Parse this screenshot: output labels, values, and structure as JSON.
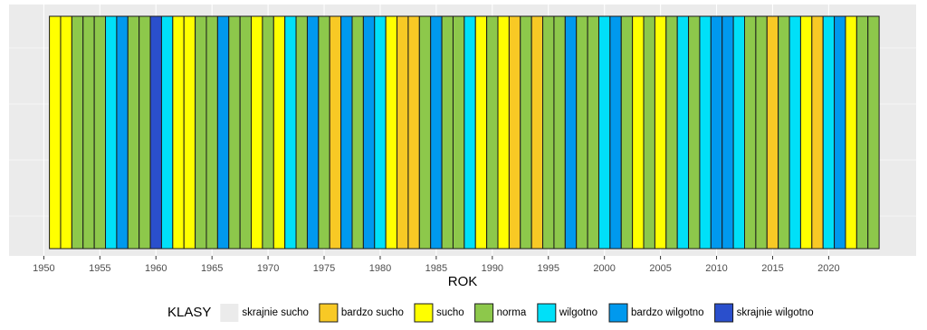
{
  "chart_data": {
    "type": "bar",
    "x_label": "ROK",
    "x": [
      1951,
      1952,
      1953,
      1954,
      1955,
      1956,
      1957,
      1958,
      1959,
      1960,
      1961,
      1962,
      1963,
      1964,
      1965,
      1966,
      1967,
      1968,
      1969,
      1970,
      1971,
      1972,
      1973,
      1974,
      1975,
      1976,
      1977,
      1978,
      1979,
      1980,
      1981,
      1982,
      1983,
      1984,
      1985,
      1986,
      1987,
      1988,
      1989,
      1990,
      1991,
      1992,
      1993,
      1994,
      1995,
      1996,
      1997,
      1998,
      1999,
      2000,
      2001,
      2002,
      2003,
      2004,
      2005,
      2006,
      2007,
      2008,
      2009,
      2010,
      2011,
      2012,
      2013,
      2014,
      2015,
      2016,
      2017,
      2018,
      2019,
      2020,
      2021,
      2022,
      2023,
      2024
    ],
    "classes": [
      "sucho",
      "sucho",
      "norma",
      "norma",
      "norma",
      "wilgotno",
      "bardzo wilgotno",
      "norma",
      "norma",
      "skrajnie wilgotno",
      "wilgotno",
      "sucho",
      "sucho",
      "norma",
      "norma",
      "bardzo wilgotno",
      "norma",
      "norma",
      "sucho",
      "norma",
      "sucho",
      "wilgotno",
      "norma",
      "bardzo wilgotno",
      "norma",
      "bardzo sucho",
      "bardzo wilgotno",
      "norma",
      "bardzo wilgotno",
      "wilgotno",
      "sucho",
      "bardzo sucho",
      "bardzo sucho",
      "norma",
      "bardzo wilgotno",
      "norma",
      "norma",
      "wilgotno",
      "sucho",
      "norma",
      "sucho",
      "bardzo sucho",
      "norma",
      "bardzo sucho",
      "norma",
      "norma",
      "bardzo wilgotno",
      "norma",
      "norma",
      "wilgotno",
      "bardzo wilgotno",
      "norma",
      "sucho",
      "norma",
      "sucho",
      "norma",
      "wilgotno",
      "norma",
      "wilgotno",
      "bardzo wilgotno",
      "bardzo wilgotno",
      "wilgotno",
      "norma",
      "norma",
      "bardzo sucho",
      "norma",
      "wilgotno",
      "sucho",
      "bardzo sucho",
      "wilgotno",
      "bardzo wilgotno",
      "sucho",
      "norma",
      "norma"
    ],
    "xlim": [
      1946.9,
      2027.8
    ],
    "xticks": [
      1950,
      1955,
      1960,
      1965,
      1970,
      1975,
      1980,
      1985,
      1990,
      1995,
      2000,
      2005,
      2010,
      2015,
      2020
    ],
    "legend": {
      "title": "KLASY",
      "items": [
        {
          "name": "skrajnie sucho",
          "color": "#ebebeb"
        },
        {
          "name": "bardzo sucho",
          "color": "#f8c925"
        },
        {
          "name": "sucho",
          "color": "#ffff00"
        },
        {
          "name": "norma",
          "color": "#8dc84b"
        },
        {
          "name": "wilgotno",
          "color": "#00e0f8"
        },
        {
          "name": "bardzo wilgotno",
          "color": "#0099ee"
        },
        {
          "name": "skrajnie wilgotno",
          "color": "#2a4fcc"
        }
      ]
    }
  }
}
